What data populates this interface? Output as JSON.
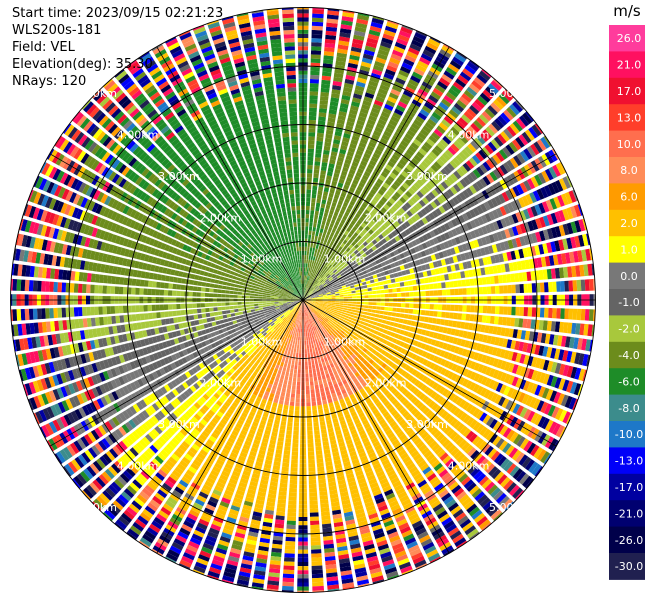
{
  "header": {
    "start_time": "Start time: 2023/09/15 02:21:23",
    "instrument": "WLS200s-181",
    "field": "Field: VEL",
    "elevation": "Elevation(deg): 35.30",
    "nrays": "NRays: 120"
  },
  "chart_data": {
    "type": "heatmap",
    "projection": "polar PPI",
    "field": "VEL",
    "units": "m/s",
    "n_rays": 120,
    "range_rings_km": [
      1.0,
      2.0,
      3.0,
      4.0,
      5.0
    ],
    "range_ring_labels": [
      "1.00km",
      "2.00km",
      "3.00km",
      "4.00km",
      "5.00km"
    ],
    "max_range_km": 5.0,
    "clean_range_km": 3.55,
    "azimuth_spokes_deg": [
      0,
      30,
      60,
      90,
      120,
      150,
      180,
      210,
      240,
      270,
      300,
      330
    ],
    "velocity_pattern": {
      "toward_direction_deg": 335,
      "toward_speed_ms": 4.7,
      "receding_peak_ms": 10,
      "receding_peak_direction_deg": 175
    },
    "colorbar": {
      "unit_label": "m/s",
      "ticks": [
        "26.0",
        "21.0",
        "17.0",
        "13.0",
        "10.0",
        "8.0",
        "6.0",
        "2.0",
        "1.0",
        "0.0",
        "-1.0",
        "-2.0",
        "-4.0",
        "-6.0",
        "-8.0",
        "-10.0",
        "-13.0",
        "-17.0",
        "-21.0",
        "-26.0",
        "-30.0"
      ],
      "colors": [
        "#ff3c9c",
        "#ff1060",
        "#f01030",
        "#ff3e2a",
        "#ff6e4e",
        "#ff8c58",
        "#ff9c00",
        "#ffc000",
        "#ffff00",
        "#787878",
        "#646464",
        "#a8c83c",
        "#6c8c1c",
        "#1e8c28",
        "#3c8c8c",
        "#1e78c8",
        "#0000f8",
        "#0000a0",
        "#000070",
        "#00004a",
        "#202050"
      ]
    }
  }
}
